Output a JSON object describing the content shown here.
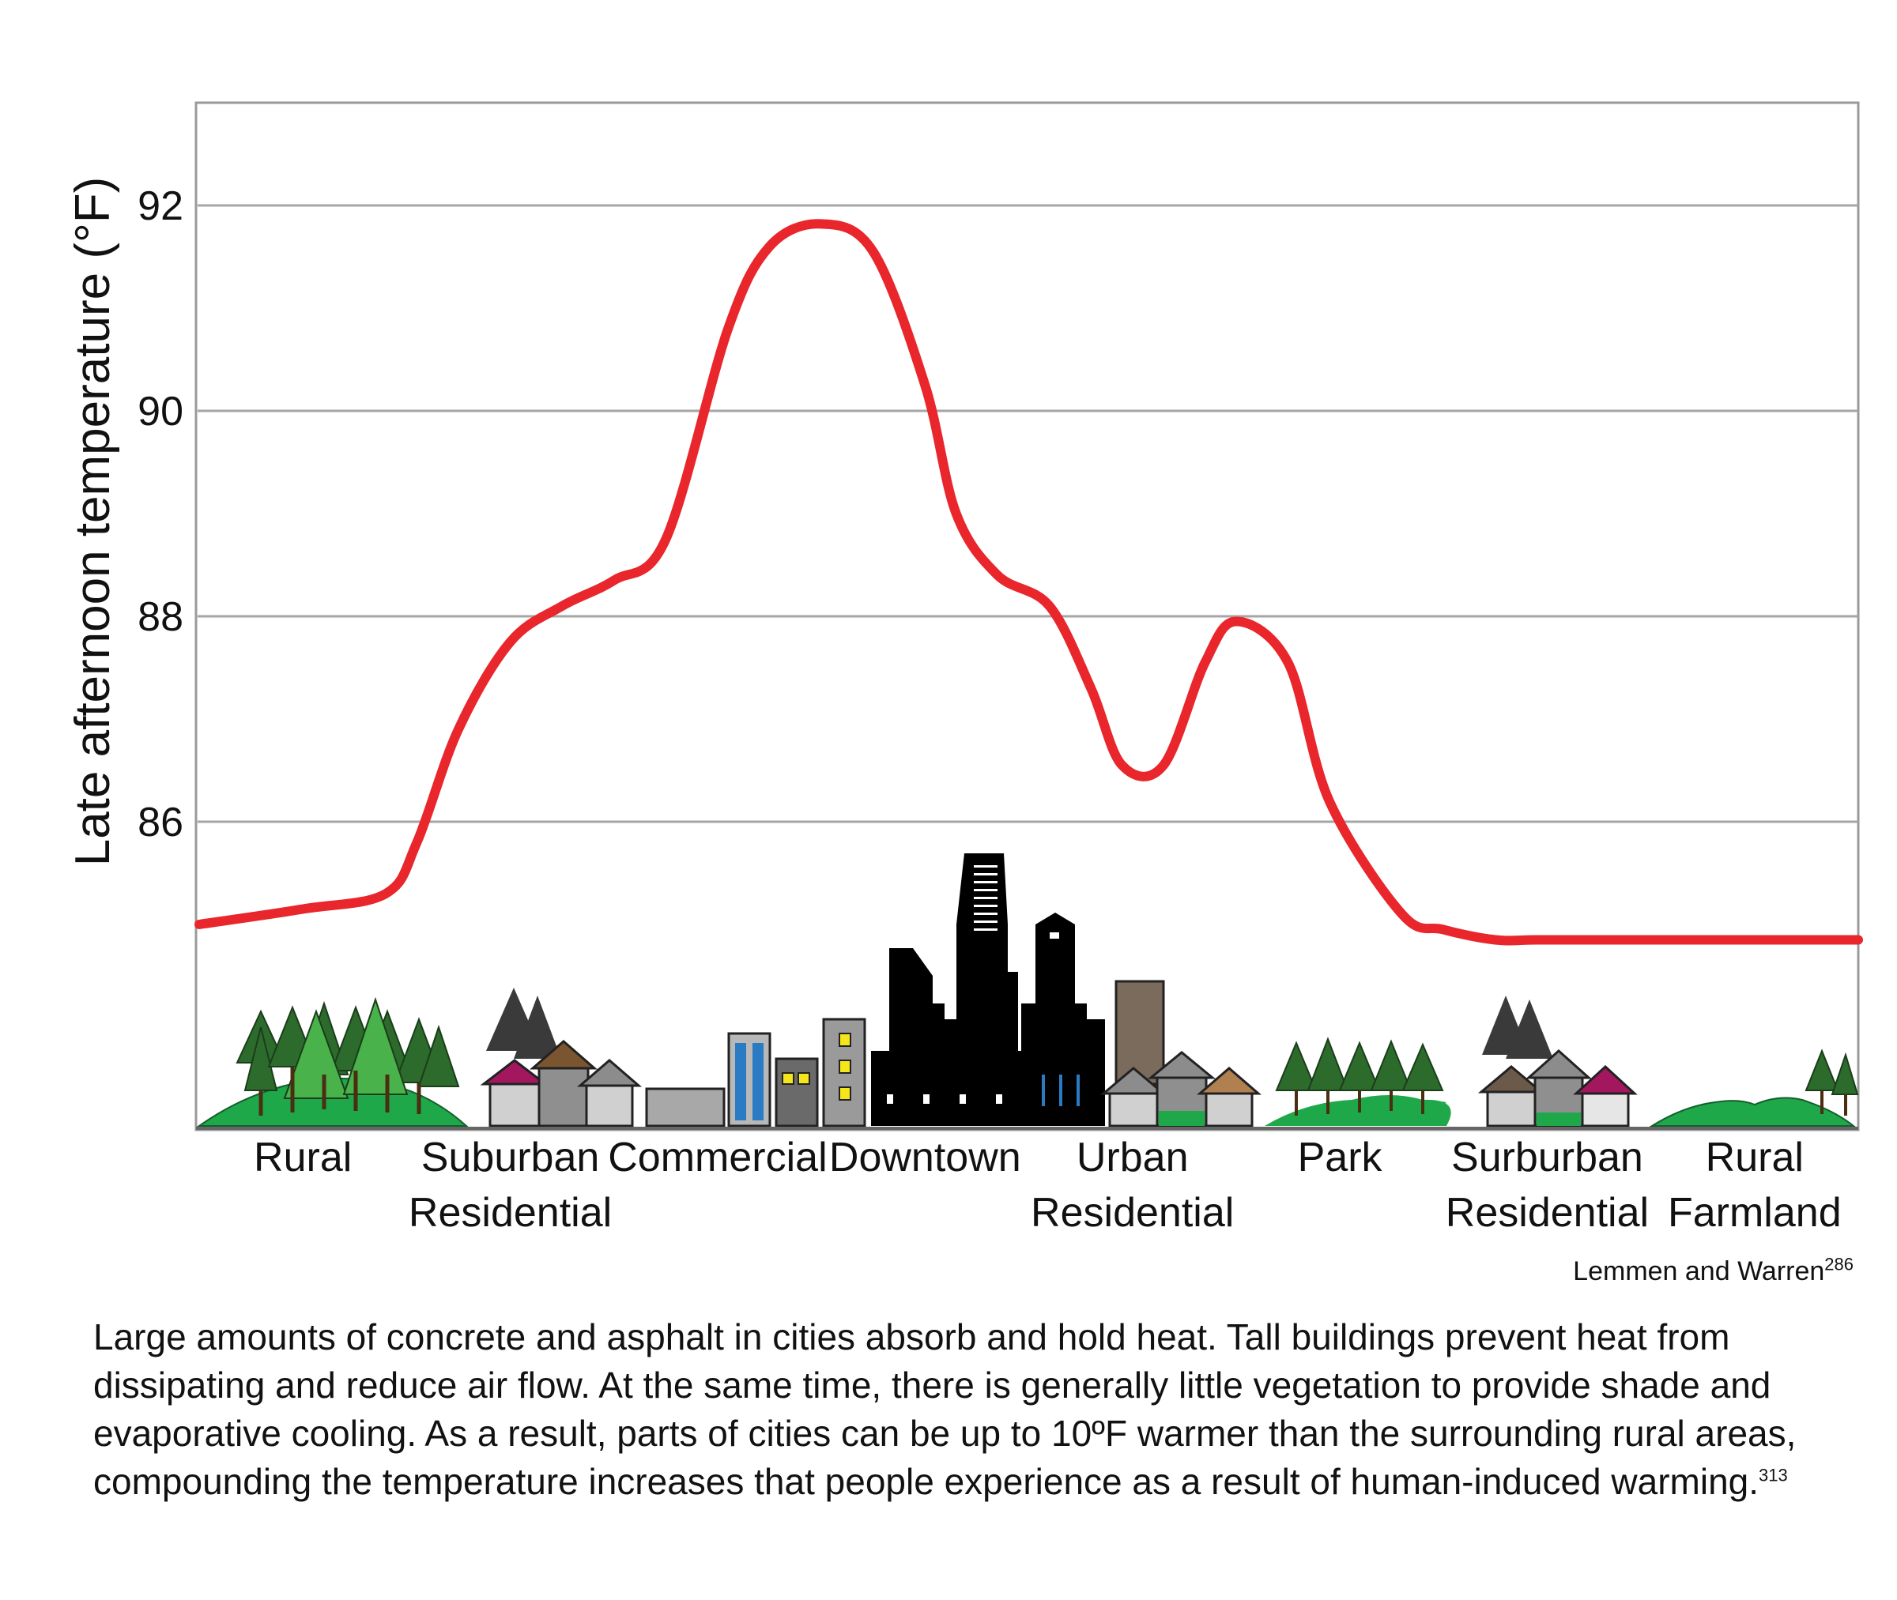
{
  "chart_data": {
    "type": "line",
    "title": "",
    "ylabel": "Late afternoon temperature (°F)",
    "xlabel": "",
    "ylim": [
      83.0,
      93.0
    ],
    "yticks": [
      86,
      88,
      90,
      92
    ],
    "ytick_labels": [
      "86",
      "88",
      "90",
      "92"
    ],
    "grid": "horizontal",
    "line_color": "#e8262b",
    "categories": [
      {
        "line1": "Rural",
        "line2": ""
      },
      {
        "line1": "Suburban",
        "line2": "Residential"
      },
      {
        "line1": "Commercial",
        "line2": ""
      },
      {
        "line1": "Downtown",
        "line2": ""
      },
      {
        "line1": "Urban",
        "line2": "Residential"
      },
      {
        "line1": "Park",
        "line2": ""
      },
      {
        "line1": "Surburban",
        "line2": "Residential"
      },
      {
        "line1": "Rural",
        "line2": "Farmland"
      }
    ],
    "x_range": [
      0,
      8
    ],
    "series": [
      {
        "x": [
          0.0,
          0.5,
          0.9,
          1.05,
          1.25,
          1.5,
          1.75,
          2.0,
          2.25,
          2.55,
          2.75,
          3.0,
          3.25,
          3.5,
          3.65,
          3.85,
          4.1,
          4.3,
          4.45,
          4.65,
          4.85,
          5.0,
          5.25,
          5.45,
          5.8,
          6.0,
          6.25,
          6.45,
          6.75,
          7.1,
          7.5,
          8.0
        ],
        "y": [
          85.0,
          85.15,
          85.3,
          85.8,
          86.9,
          87.75,
          88.1,
          88.35,
          88.75,
          90.8,
          91.6,
          91.82,
          91.55,
          90.25,
          89.0,
          88.4,
          88.1,
          87.3,
          86.55,
          86.55,
          87.55,
          87.95,
          87.55,
          86.2,
          85.1,
          84.95,
          84.85,
          84.85,
          84.85,
          84.85,
          84.85,
          84.85
        ]
      }
    ]
  },
  "source": {
    "text": "Lemmen and Warren",
    "ref": "286"
  },
  "caption": {
    "text": "Large amounts of concrete and asphalt in cities absorb and hold heat. Tall buildings prevent heat from dissipating and reduce air flow. At the same time, there is generally little vegetation to provide shade and evaporative cooling. As a result, parts of cities can be up to 10ºF warmer than the surrounding rural areas, compounding the temperature increases that people experience as a result of human-induced warming.",
    "ref": "313"
  },
  "colors": {
    "line": "#e8262b",
    "grid": "#a6a6a6",
    "frame": "#9a9a9a",
    "grass": "#1fa84a",
    "tree": "#2d6b2d",
    "tree_light": "#49b24a",
    "building_dark": "#000000",
    "roof_magenta": "#a3175f",
    "roof_brown": "#7a5530",
    "roof_gray": "#8c8c8c",
    "wall_light": "#d0d0d0",
    "wall_mid": "#8f8f8f",
    "glass_blue": "#2a7bc4",
    "window_yellow": "#f5e61b",
    "tower_brown": "#7a6b5c"
  },
  "scene_icons": [
    "pine-forest-icon",
    "suburban-houses-icon",
    "commercial-buildings-icon",
    "downtown-skyline-icon",
    "urban-houses-icon",
    "park-trees-icon",
    "suburban-houses-icon",
    "farmland-icon"
  ]
}
